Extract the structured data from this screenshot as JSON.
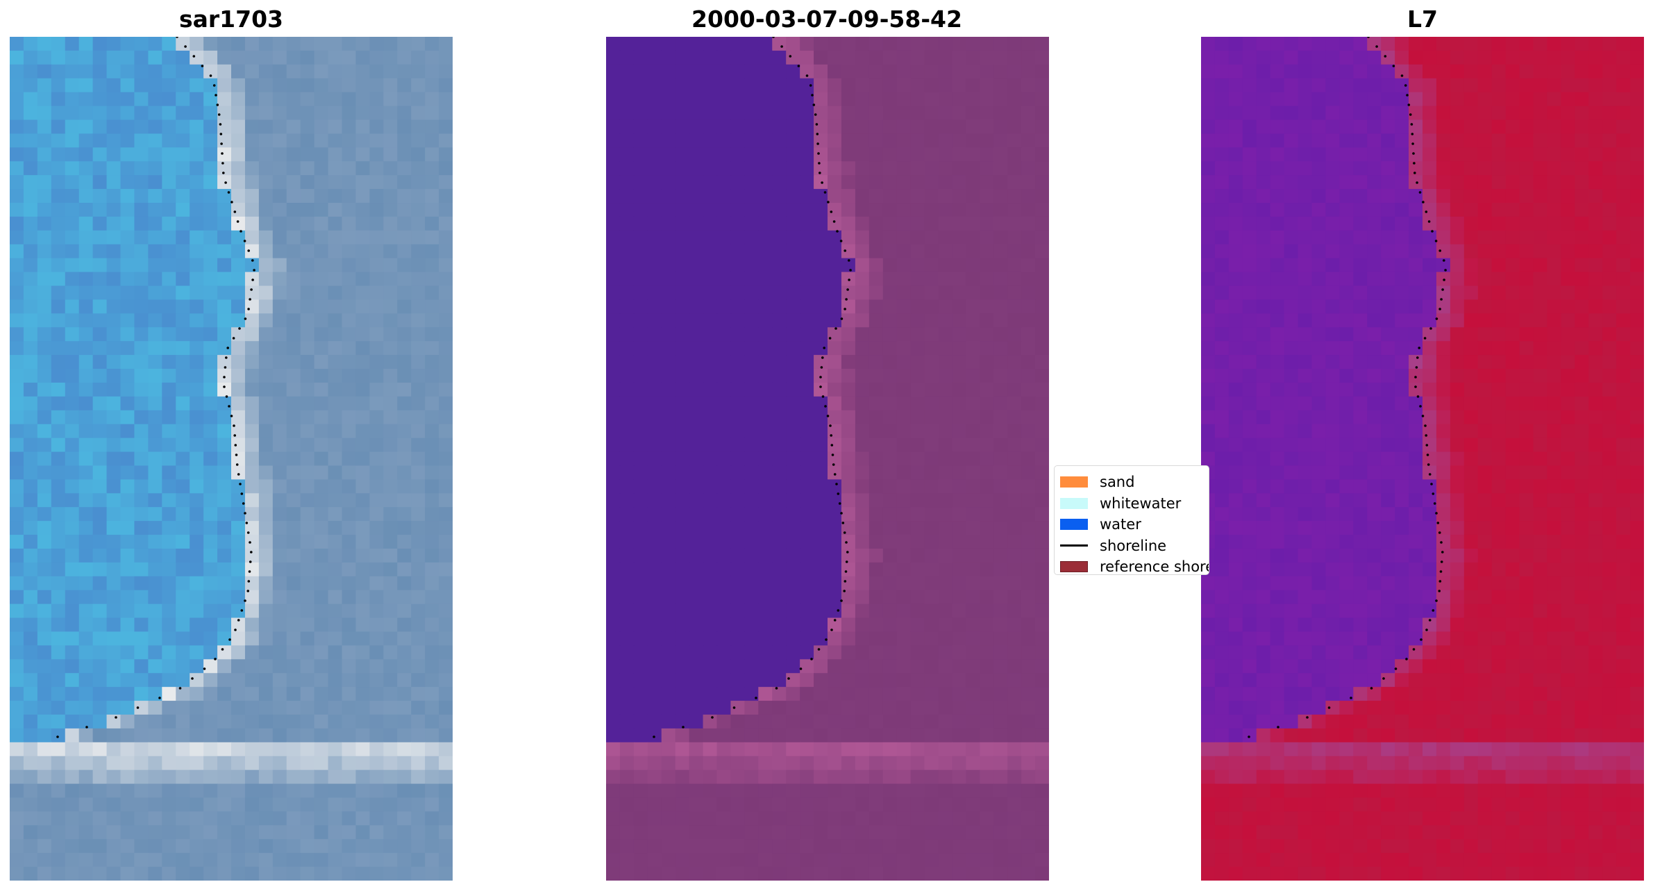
{
  "panels": [
    {
      "title": "sar1703"
    },
    {
      "title": "2000-03-07-09-58-42"
    },
    {
      "title": "L7"
    }
  ],
  "legend": {
    "items": [
      {
        "label": "sand",
        "kind": "patch",
        "color": "#ff8c3c"
      },
      {
        "label": "whitewater",
        "kind": "patch",
        "color": "#c8fafa"
      },
      {
        "label": "water",
        "kind": "patch",
        "color": "#0a5ff0"
      },
      {
        "label": "shoreline",
        "kind": "line",
        "color": "#000000"
      },
      {
        "label": "reference shoreline",
        "kind": "patch",
        "color": "#9b2d37",
        "edge": "#6e1e25"
      }
    ]
  },
  "colors": {
    "rgb_water": "#4a8fd0",
    "rgb_land": "#6a8fb5",
    "rgb_surf": "#f0f0f0",
    "classified_water": "#542299",
    "classified_land": "#7e3a78",
    "classified_surf": "#b55a98",
    "swir_water": "#7a1faa",
    "swir_land": "#c5103c",
    "swir_edge": "#a8408a"
  }
}
